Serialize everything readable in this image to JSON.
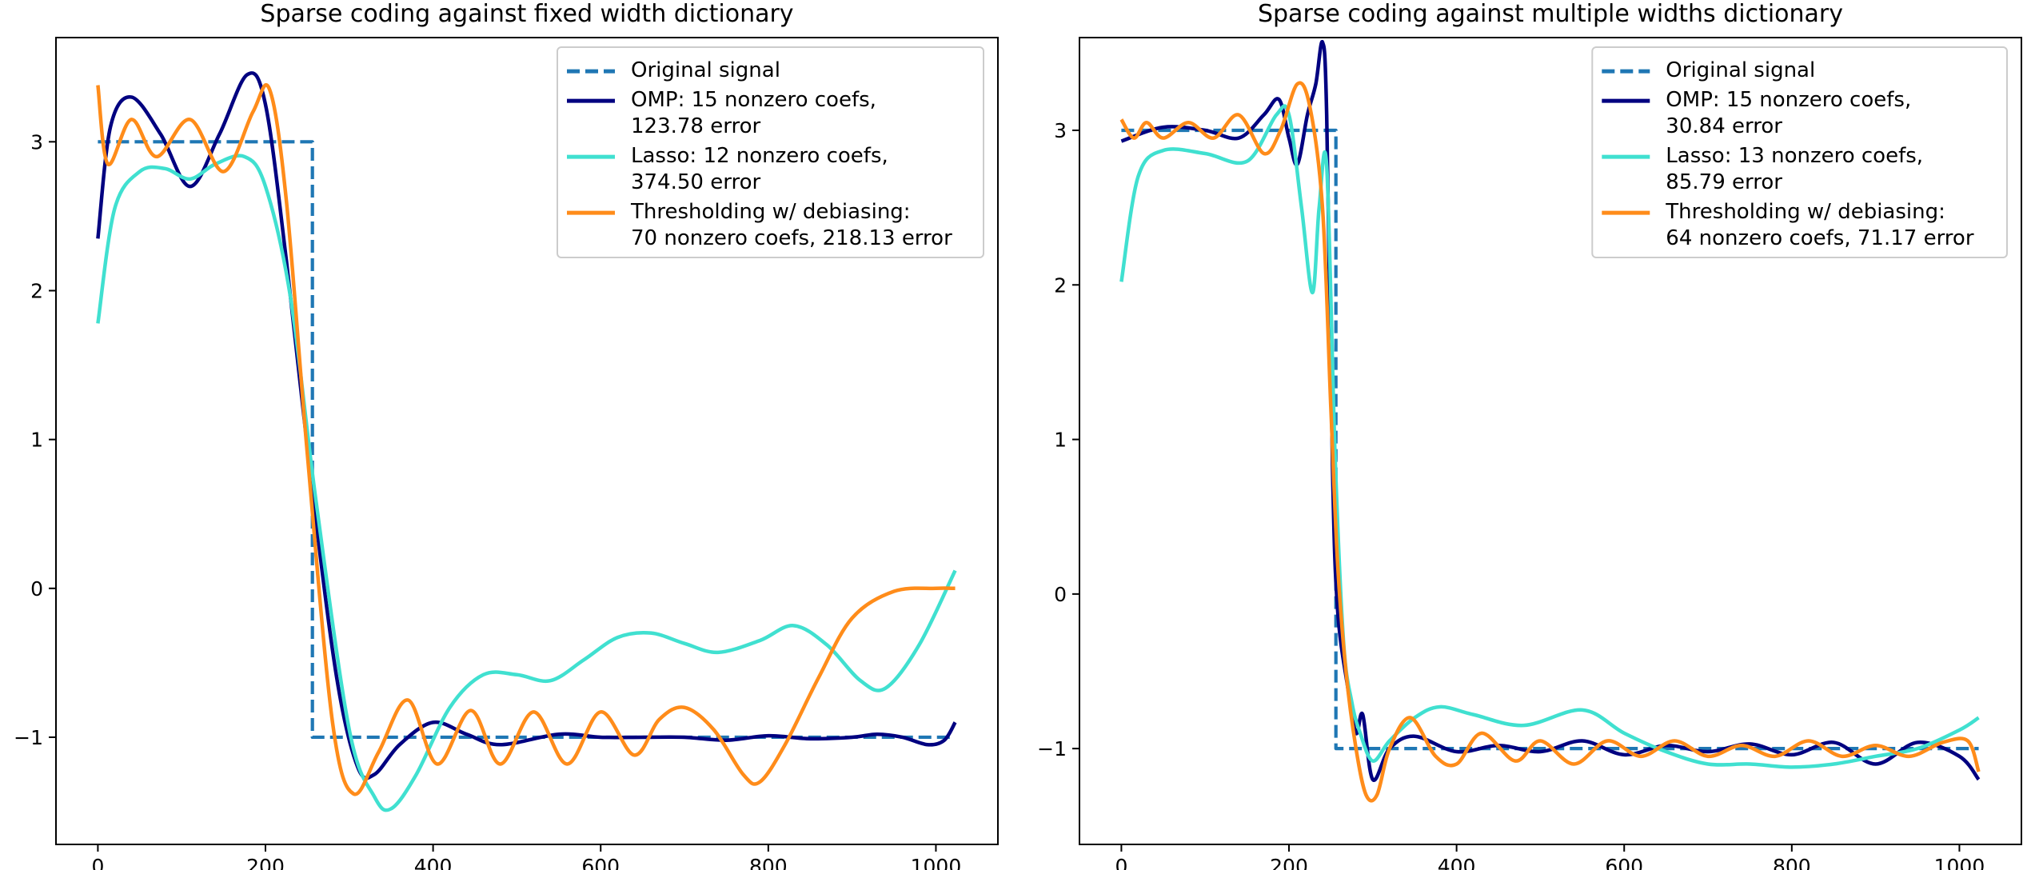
{
  "chart_data": [
    {
      "type": "line",
      "title": "Sparse coding against fixed width dictionary",
      "xlabel": "",
      "ylabel": "",
      "xlim": [
        -50,
        1074
      ],
      "ylim": [
        -1.72,
        3.7
      ],
      "xticks": [
        0,
        200,
        400,
        600,
        800,
        1000
      ],
      "yticks": [
        -1,
        0,
        1,
        2,
        3
      ],
      "grid": false,
      "legend_position": "top-right",
      "series": [
        {
          "name": "Original signal",
          "color": "#1f77b4",
          "style": "dashed",
          "x": [
            0,
            256,
            256,
            1023
          ],
          "y": [
            3,
            3,
            -1,
            -1
          ]
        },
        {
          "name": "OMP: 15 nonzero coefs,\n123.78 error",
          "color": "#000080",
          "style": "solid",
          "x": [
            0,
            15,
            40,
            75,
            110,
            145,
            178,
            200,
            225,
            255,
            285,
            310,
            330,
            360,
            400,
            440,
            480,
            550,
            600,
            650,
            700,
            750,
            800,
            850,
            900,
            930,
            960,
            990,
            1010,
            1023
          ],
          "y": [
            2.35,
            3.1,
            3.3,
            3.05,
            2.7,
            3.05,
            3.45,
            3.25,
            2.2,
            0.7,
            -0.6,
            -1.2,
            -1.25,
            -1.05,
            -0.9,
            -0.98,
            -1.05,
            -0.98,
            -1.0,
            -1.0,
            -1.0,
            -1.02,
            -0.99,
            -1.01,
            -1.0,
            -0.98,
            -1.0,
            -1.05,
            -1.02,
            -0.9
          ]
        },
        {
          "name": "Lasso: 12 nonzero coefs,\n374.50 error",
          "color": "#40e0d0",
          "style": "solid",
          "x": [
            0,
            20,
            50,
            80,
            110,
            140,
            175,
            200,
            230,
            260,
            300,
            330,
            350,
            380,
            420,
            460,
            500,
            540,
            580,
            620,
            660,
            700,
            740,
            790,
            830,
            870,
            910,
            940,
            980,
            1023
          ],
          "y": [
            1.78,
            2.55,
            2.8,
            2.82,
            2.75,
            2.85,
            2.9,
            2.7,
            1.95,
            0.6,
            -0.95,
            -1.4,
            -1.48,
            -1.25,
            -0.8,
            -0.58,
            -0.58,
            -0.62,
            -0.48,
            -0.33,
            -0.3,
            -0.37,
            -0.43,
            -0.35,
            -0.25,
            -0.38,
            -0.62,
            -0.67,
            -0.38,
            0.12
          ]
        },
        {
          "name": "Thresholding w/ debiasing:\n70 nonzero coefs, 218.13 error",
          "color": "#ff8c1a",
          "style": "solid",
          "x": [
            0,
            12,
            40,
            70,
            110,
            150,
            185,
            205,
            225,
            250,
            280,
            305,
            335,
            370,
            405,
            445,
            480,
            520,
            560,
            600,
            640,
            670,
            700,
            735,
            770,
            790,
            820,
            860,
            900,
            950,
            1000,
            1023
          ],
          "y": [
            3.38,
            2.85,
            3.15,
            2.9,
            3.15,
            2.8,
            3.2,
            3.35,
            2.6,
            0.9,
            -0.9,
            -1.38,
            -1.1,
            -0.75,
            -1.18,
            -0.82,
            -1.18,
            -0.83,
            -1.18,
            -0.83,
            -1.12,
            -0.88,
            -0.8,
            -0.95,
            -1.25,
            -1.3,
            -1.05,
            -0.6,
            -0.2,
            -0.02,
            0.0,
            0.0
          ]
        }
      ]
    },
    {
      "type": "line",
      "title": "Sparse coding against multiple widths dictionary",
      "xlabel": "",
      "ylabel": "",
      "xlim": [
        -50,
        1074
      ],
      "ylim": [
        -1.62,
        3.6
      ],
      "xticks": [
        0,
        200,
        400,
        600,
        800,
        1000
      ],
      "yticks": [
        -1,
        0,
        1,
        2,
        3
      ],
      "grid": false,
      "legend_position": "top-right",
      "series": [
        {
          "name": "Original signal",
          "color": "#1f77b4",
          "style": "dashed",
          "x": [
            0,
            256,
            256,
            1023
          ],
          "y": [
            3,
            3,
            -1,
            -1
          ]
        },
        {
          "name": "OMP: 15 nonzero coefs,\n30.84 error",
          "color": "#000080",
          "style": "solid",
          "x": [
            0,
            50,
            100,
            140,
            170,
            188,
            200,
            210,
            222,
            232,
            240,
            245,
            252,
            258,
            270,
            280,
            288,
            300,
            320,
            350,
            400,
            450,
            500,
            550,
            600,
            650,
            700,
            750,
            800,
            850,
            900,
            950,
            1000,
            1023
          ],
          "y": [
            2.93,
            3.02,
            3.0,
            2.95,
            3.1,
            3.2,
            2.95,
            2.78,
            3.1,
            3.3,
            3.57,
            3.1,
            0.8,
            -0.1,
            -0.6,
            -0.9,
            -0.78,
            -1.2,
            -1.0,
            -0.92,
            -1.02,
            -0.98,
            -1.02,
            -0.95,
            -1.04,
            -0.98,
            -1.02,
            -0.97,
            -1.04,
            -0.96,
            -1.1,
            -0.96,
            -1.05,
            -1.2
          ]
        },
        {
          "name": "Lasso: 13 nonzero coefs,\n85.79 error",
          "color": "#40e0d0",
          "style": "solid",
          "x": [
            0,
            20,
            50,
            100,
            150,
            185,
            200,
            215,
            228,
            236,
            245,
            255,
            265,
            275,
            285,
            300,
            320,
            350,
            380,
            420,
            480,
            550,
            600,
            650,
            700,
            750,
            800,
            850,
            900,
            950,
            1000,
            1023
          ],
          "y": [
            2.02,
            2.7,
            2.87,
            2.85,
            2.8,
            3.1,
            3.1,
            2.5,
            1.95,
            2.5,
            2.77,
            0.9,
            -0.3,
            -0.7,
            -0.9,
            -1.08,
            -0.95,
            -0.8,
            -0.73,
            -0.78,
            -0.85,
            -0.75,
            -0.9,
            -1.02,
            -1.1,
            -1.1,
            -1.12,
            -1.1,
            -1.05,
            -1.0,
            -0.88,
            -0.8
          ]
        },
        {
          "name": "Thresholding w/ debiasing:\n64 nonzero coefs, 71.17 error",
          "color": "#ff8c1a",
          "style": "solid",
          "x": [
            0,
            15,
            30,
            50,
            80,
            110,
            140,
            170,
            190,
            210,
            225,
            240,
            250,
            258,
            268,
            280,
            292,
            305,
            320,
            345,
            375,
            400,
            430,
            470,
            500,
            540,
            580,
            620,
            660,
            700,
            740,
            780,
            820,
            860,
            900,
            940,
            980,
            1010,
            1023
          ],
          "y": [
            3.07,
            2.95,
            3.05,
            2.95,
            3.05,
            2.95,
            3.1,
            2.85,
            3.0,
            3.3,
            3.15,
            2.5,
            1.2,
            0.2,
            -0.5,
            -1.0,
            -1.3,
            -1.3,
            -1.0,
            -0.8,
            -1.05,
            -1.1,
            -0.9,
            -1.08,
            -0.95,
            -1.1,
            -0.95,
            -1.05,
            -0.95,
            -1.05,
            -0.98,
            -1.05,
            -0.95,
            -1.05,
            -0.98,
            -1.05,
            -0.96,
            -0.95,
            -1.15
          ]
        }
      ]
    }
  ]
}
